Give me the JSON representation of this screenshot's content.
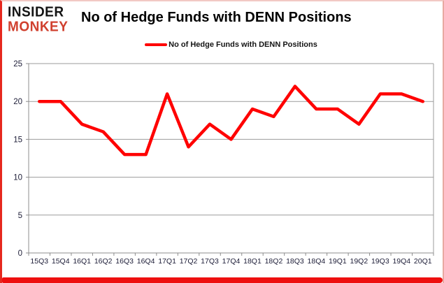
{
  "logo": {
    "line1": "INSIDER",
    "line2": "MONKEY"
  },
  "header": {
    "title": "No of Hedge Funds with DENN Positions"
  },
  "legend": {
    "label": "No of Hedge Funds with DENN Positions"
  },
  "colors": {
    "line": "#ff0000",
    "gridline": "#9b9b9b",
    "axis": "#8c8c8c",
    "tick_text": "#20203a",
    "logo_red": "#d0402e",
    "border_red": "#ee0f0f"
  },
  "chart_data": {
    "type": "line",
    "title": "No of Hedge Funds with DENN Positions",
    "categories": [
      "15Q3",
      "15Q4",
      "16Q1",
      "16Q2",
      "16Q3",
      "16Q4",
      "17Q1",
      "17Q2",
      "17Q3",
      "17Q4",
      "18Q1",
      "18Q2",
      "18Q3",
      "18Q4",
      "19Q1",
      "19Q2",
      "19Q3",
      "19Q4",
      "20Q1"
    ],
    "series": [
      {
        "name": "No of Hedge Funds with DENN Positions",
        "color": "#ff0000",
        "values": [
          20,
          20,
          17,
          16,
          13,
          13,
          21,
          14,
          17,
          15,
          19,
          18,
          22,
          19,
          19,
          17,
          21,
          21,
          20
        ]
      }
    ],
    "xlabel": "",
    "ylabel": "",
    "ylim": [
      0,
      25
    ],
    "yticks": [
      0,
      5,
      10,
      15,
      20,
      25
    ],
    "grid": true,
    "legend_position": "top-center"
  }
}
